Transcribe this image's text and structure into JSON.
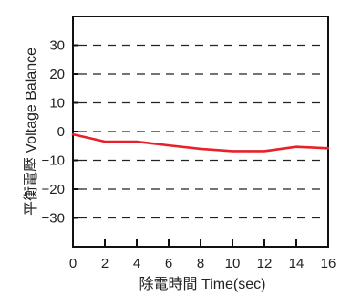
{
  "chart_data": {
    "type": "line",
    "title": "",
    "xlabel": "除電時間  Time(sec)",
    "ylabel": "平衡電壓  Voltage Balance",
    "xlim": [
      0,
      16
    ],
    "ylim": [
      -40,
      40
    ],
    "x_ticks": [
      0,
      2,
      4,
      6,
      8,
      10,
      12,
      14,
      16
    ],
    "y_ticks": [
      30,
      20,
      10,
      0,
      -10,
      -20,
      -30
    ],
    "y_tick_labels": [
      "30",
      "20",
      "10",
      "0",
      "−10",
      "−20",
      "−30"
    ],
    "grid": "dashed horizontal",
    "series": [
      {
        "color": "#e8202a",
        "x": [
          0,
          2,
          4,
          6,
          8,
          10,
          12,
          14,
          16
        ],
        "y": [
          -1,
          -3.5,
          -3.5,
          -4.8,
          -6,
          -6.8,
          -6.8,
          -5.3,
          -5.8
        ]
      }
    ]
  }
}
